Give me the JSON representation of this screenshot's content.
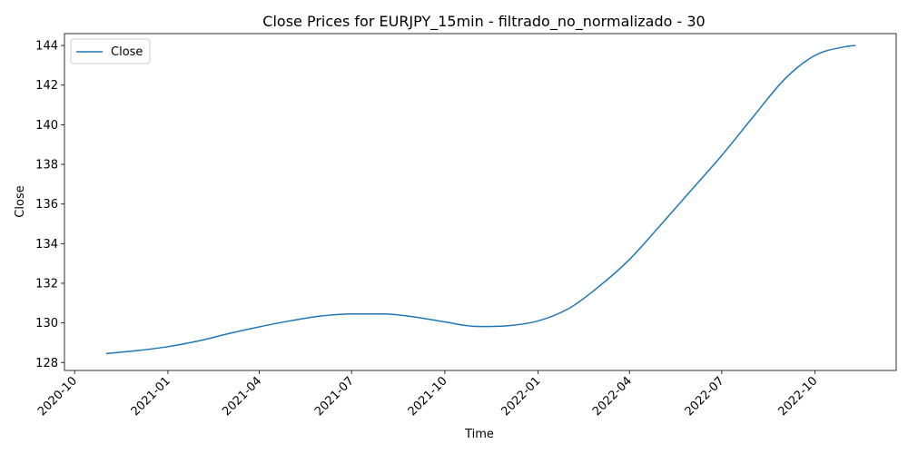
{
  "chart_data": {
    "type": "line",
    "title": "Close Prices for EURJPY_15min - filtrado_no_normalizado - 30",
    "xlabel": "Time",
    "ylabel": "Close",
    "xlim": [
      "2020-09-21",
      "2022-12-20"
    ],
    "ylim": [
      127.6,
      144.6
    ],
    "x_ticks": [
      "2020-10",
      "2021-01",
      "2021-04",
      "2021-07",
      "2021-10",
      "2022-01",
      "2022-04",
      "2022-07",
      "2022-10"
    ],
    "y_ticks": [
      128,
      130,
      132,
      134,
      136,
      138,
      140,
      142,
      144
    ],
    "grid": false,
    "legend": {
      "position": "top-left",
      "entries": [
        "Close"
      ]
    },
    "series": [
      {
        "name": "Close",
        "color": "#1f77b4",
        "x": [
          "2020-11-01",
          "2020-12-01",
          "2021-01-01",
          "2021-02-01",
          "2021-03-01",
          "2021-04-01",
          "2021-05-01",
          "2021-06-01",
          "2021-07-01",
          "2021-08-01",
          "2021-09-01",
          "2021-10-01",
          "2021-11-01",
          "2021-12-01",
          "2022-01-01",
          "2022-02-01",
          "2022-03-01",
          "2022-04-01",
          "2022-05-01",
          "2022-06-01",
          "2022-07-01",
          "2022-08-01",
          "2022-09-01",
          "2022-10-01",
          "2022-11-01",
          "2022-11-10"
        ],
        "y": [
          128.45,
          128.6,
          128.8,
          129.1,
          129.45,
          129.8,
          130.1,
          130.35,
          130.45,
          130.45,
          130.3,
          130.05,
          129.82,
          129.85,
          130.1,
          130.75,
          131.8,
          133.2,
          134.9,
          136.7,
          138.45,
          140.4,
          142.3,
          143.5,
          143.95,
          144.0
        ]
      }
    ]
  }
}
